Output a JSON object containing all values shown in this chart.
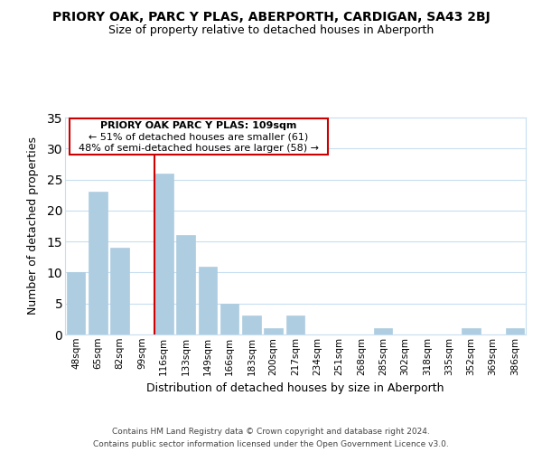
{
  "title": "PRIORY OAK, PARC Y PLAS, ABERPORTH, CARDIGAN, SA43 2BJ",
  "subtitle": "Size of property relative to detached houses in Aberporth",
  "xlabel": "Distribution of detached houses by size in Aberporth",
  "ylabel": "Number of detached properties",
  "bar_color": "#aecde1",
  "bar_edge_color": "#aecde1",
  "highlight_color": "#cc0000",
  "background_color": "#ffffff",
  "grid_color": "#c8dff0",
  "categories": [
    "48sqm",
    "65sqm",
    "82sqm",
    "99sqm",
    "116sqm",
    "133sqm",
    "149sqm",
    "166sqm",
    "183sqm",
    "200sqm",
    "217sqm",
    "234sqm",
    "251sqm",
    "268sqm",
    "285sqm",
    "302sqm",
    "318sqm",
    "335sqm",
    "352sqm",
    "369sqm",
    "386sqm"
  ],
  "values": [
    10,
    23,
    14,
    0,
    26,
    16,
    11,
    5,
    3,
    1,
    3,
    0,
    0,
    0,
    1,
    0,
    0,
    0,
    1,
    0,
    1
  ],
  "highlight_index": 4,
  "ylim": [
    0,
    35
  ],
  "yticks": [
    0,
    5,
    10,
    15,
    20,
    25,
    30,
    35
  ],
  "annotation_title": "PRIORY OAK PARC Y PLAS: 109sqm",
  "annotation_line1": "← 51% of detached houses are smaller (61)",
  "annotation_line2": "48% of semi-detached houses are larger (58) →",
  "footer_line1": "Contains HM Land Registry data © Crown copyright and database right 2024.",
  "footer_line2": "Contains public sector information licensed under the Open Government Licence v3.0."
}
